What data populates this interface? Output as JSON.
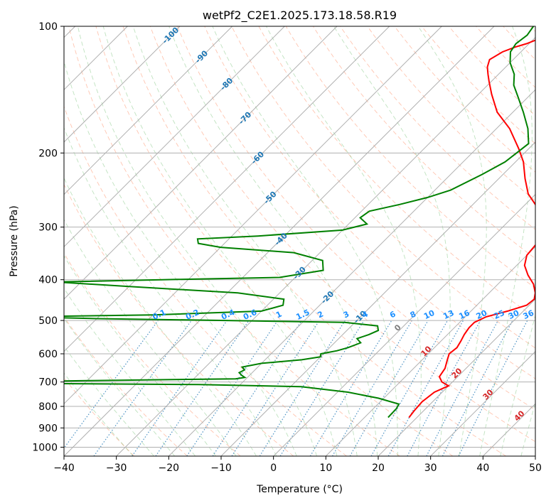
{
  "chart_data": {
    "type": "line",
    "title": "wetPf2_C2E1.2025.173.18.58.R19",
    "xlabel": "Temperature (°C)",
    "ylabel": "Pressure (hPa)",
    "xlim": [
      -40,
      50
    ],
    "ylim": [
      1050,
      100
    ],
    "y_scale": "log",
    "grid": true,
    "x_ticks": [
      "−40",
      "−30",
      "−20",
      "−10",
      "0",
      "10",
      "20",
      "30",
      "40",
      "50"
    ],
    "x_tick_values": [
      -40,
      -30,
      -20,
      -10,
      0,
      10,
      20,
      30,
      40,
      50
    ],
    "y_ticks": [
      "100",
      "200",
      "300",
      "400",
      "500",
      "600",
      "700",
      "800",
      "900",
      "1000"
    ],
    "y_tick_values": [
      100,
      200,
      300,
      400,
      500,
      600,
      700,
      800,
      900,
      1000
    ],
    "isotherm_labels": [
      "-100",
      "-90",
      "-80",
      "-70",
      "-60",
      "-50",
      "-40",
      "-30",
      "-20",
      "-10"
    ],
    "isotherm_values": [
      -100,
      -90,
      -80,
      -70,
      -60,
      -50,
      -40,
      -30,
      -20,
      -10
    ],
    "mixing_ratio_labels": [
      "0.1",
      "0.2",
      "0.4",
      "0.6",
      "1",
      "1.5",
      "2",
      "3",
      "4",
      "6",
      "8",
      "10",
      "13",
      "16",
      "20",
      "25",
      "30",
      "36"
    ],
    "mixing_ratio_values": [
      0.1,
      0.2,
      0.4,
      0.6,
      1,
      1.5,
      2,
      3,
      4,
      6,
      8,
      10,
      13,
      16,
      20,
      25,
      30,
      36
    ],
    "moist_adiabat_labels": [
      "0",
      "10",
      "20",
      "30",
      "40"
    ],
    "moist_adiabat_values": [
      0,
      10,
      20,
      30,
      40
    ],
    "series": [
      {
        "color": "#ff0000",
        "points": [
          [
            18.5,
            850
          ],
          [
            18.2,
            820
          ],
          [
            18.0,
            780
          ],
          [
            18.5,
            740
          ],
          [
            20.0,
            715
          ],
          [
            18.0,
            700
          ],
          [
            16.5,
            680
          ],
          [
            16.0,
            650
          ],
          [
            14.8,
            620
          ],
          [
            14.0,
            600
          ],
          [
            14.3,
            580
          ],
          [
            13.8,
            560
          ],
          [
            13.2,
            540
          ],
          [
            12.8,
            520
          ],
          [
            12.8,
            505
          ],
          [
            14.0,
            490
          ],
          [
            17.0,
            475
          ],
          [
            19.5,
            460
          ],
          [
            19.8,
            445
          ],
          [
            18.8,
            430
          ],
          [
            16.8,
            410
          ],
          [
            14.0,
            390
          ],
          [
            11.5,
            370
          ],
          [
            10.0,
            350
          ],
          [
            9.5,
            320
          ],
          [
            8.7,
            300
          ],
          [
            6.5,
            285
          ],
          [
            3.0,
            270
          ],
          [
            -1.5,
            250
          ],
          [
            -5.0,
            230
          ],
          [
            -8.5,
            210
          ],
          [
            -12.0,
            195
          ],
          [
            -17.5,
            175
          ],
          [
            -23.0,
            160
          ],
          [
            -27.5,
            145
          ],
          [
            -30.5,
            135
          ],
          [
            -32.0,
            130
          ],
          [
            -33.5,
            125
          ],
          [
            -34.5,
            120
          ],
          [
            -33.5,
            115
          ],
          [
            -32.0,
            112
          ],
          [
            -30.5,
            110
          ],
          [
            -29.5,
            108
          ],
          [
            -28.5,
            105
          ],
          [
            -26.5,
            100
          ]
        ]
      },
      {
        "color": "#008000",
        "points": [
          [
            14.5,
            850
          ],
          [
            14.4,
            810
          ],
          [
            14.0,
            790
          ],
          [
            9.0,
            765
          ],
          [
            2.0,
            740
          ],
          [
            -8.0,
            718
          ],
          [
            -28.0,
            710
          ],
          [
            -63.0,
            705
          ],
          [
            -68.0,
            700
          ],
          [
            -50.0,
            695
          ],
          [
            -22.0,
            688
          ],
          [
            -20.5,
            683
          ],
          [
            -21.5,
            675
          ],
          [
            -22.5,
            665
          ],
          [
            -22.0,
            655
          ],
          [
            -23.0,
            645
          ],
          [
            -20.0,
            632
          ],
          [
            -13.0,
            620
          ],
          [
            -10.0,
            610
          ],
          [
            -10.5,
            600
          ],
          [
            -8.0,
            590
          ],
          [
            -6.5,
            580
          ],
          [
            -5.0,
            565
          ],
          [
            -6.5,
            552
          ],
          [
            -5.0,
            540
          ],
          [
            -4.0,
            528
          ],
          [
            -5.0,
            515
          ],
          [
            -12.0,
            505
          ],
          [
            -35.0,
            500
          ],
          [
            -60.0,
            495
          ],
          [
            -75.0,
            490
          ],
          [
            -50.0,
            485
          ],
          [
            -30.0,
            475
          ],
          [
            -27.0,
            460
          ],
          [
            -28.0,
            445
          ],
          [
            -38.0,
            430
          ],
          [
            -60.0,
            415
          ],
          [
            -75.0,
            405
          ],
          [
            -55.0,
            400
          ],
          [
            -33.0,
            395
          ],
          [
            -26.0,
            380
          ],
          [
            -28.0,
            360
          ],
          [
            -35.0,
            345
          ],
          [
            -50.0,
            335
          ],
          [
            -55.0,
            328
          ],
          [
            -56.0,
            320
          ],
          [
            -45.0,
            315
          ],
          [
            -30.0,
            305
          ],
          [
            -26.5,
            295
          ],
          [
            -29.0,
            285
          ],
          [
            -28.5,
            275
          ],
          [
            -24.0,
            265
          ],
          [
            -20.0,
            255
          ],
          [
            -17.0,
            245
          ],
          [
            -14.0,
            225
          ],
          [
            -12.0,
            210
          ],
          [
            -11.5,
            200
          ],
          [
            -11.0,
            190
          ],
          [
            -14.0,
            175
          ],
          [
            -18.0,
            160
          ],
          [
            -22.0,
            147
          ],
          [
            -25.0,
            138
          ],
          [
            -27.0,
            130
          ],
          [
            -30.0,
            122
          ],
          [
            -32.0,
            115
          ],
          [
            -32.5,
            110
          ],
          [
            -32.0,
            105
          ],
          [
            -32.5,
            100
          ]
        ]
      }
    ]
  }
}
